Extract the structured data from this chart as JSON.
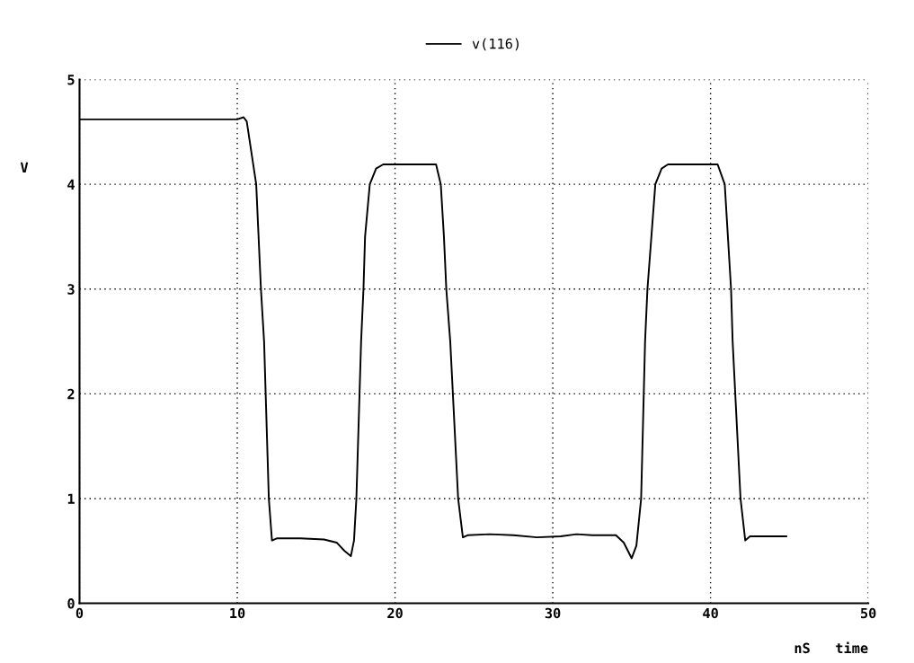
{
  "chart_data": {
    "type": "line",
    "xlabel": "nS   time",
    "ylabel": "V",
    "xlim": [
      0,
      50
    ],
    "ylim": [
      0,
      5
    ],
    "xticks": [
      0,
      10,
      20,
      30,
      40,
      50
    ],
    "yticks": [
      0,
      1,
      2,
      3,
      4,
      5
    ],
    "grid": true,
    "legend": "top",
    "line_style": "solid",
    "marker": "none",
    "series": [
      {
        "name": "v(116)",
        "color": "#000000",
        "x": [
          0,
          5,
          10.0,
          10.4,
          10.6,
          11.2,
          11.5,
          11.7,
          12.0,
          12.2,
          12.5,
          14,
          15.5,
          16.3,
          16.8,
          17.2,
          17.4,
          17.55,
          17.85,
          18.0,
          18.1,
          18.4,
          18.8,
          19.25,
          21,
          22.6,
          22.9,
          23.1,
          23.25,
          23.5,
          24.0,
          24.3,
          24.6,
          26,
          27.5,
          29,
          30.5,
          31.5,
          32.5,
          34,
          34.5,
          35.0,
          35.3,
          35.6,
          35.85,
          36.0,
          36.25,
          36.5,
          36.9,
          37.3,
          39,
          40.45,
          40.9,
          41.3,
          41.4,
          41.9,
          42.2,
          42.5,
          44.8
        ],
        "values": [
          4.62,
          4.62,
          4.62,
          4.64,
          4.6,
          4.0,
          3.0,
          2.5,
          1.0,
          0.6,
          0.62,
          0.62,
          0.61,
          0.58,
          0.5,
          0.45,
          0.6,
          1.0,
          2.5,
          3.0,
          3.5,
          4.0,
          4.15,
          4.19,
          4.19,
          4.19,
          4.0,
          3.5,
          3.0,
          2.5,
          1.0,
          0.63,
          0.65,
          0.66,
          0.65,
          0.63,
          0.64,
          0.66,
          0.65,
          0.65,
          0.58,
          0.43,
          0.55,
          1.0,
          2.5,
          3.0,
          3.5,
          4.0,
          4.15,
          4.19,
          4.19,
          4.19,
          4.0,
          3.0,
          2.5,
          1.0,
          0.6,
          0.64,
          0.64
        ]
      }
    ]
  }
}
